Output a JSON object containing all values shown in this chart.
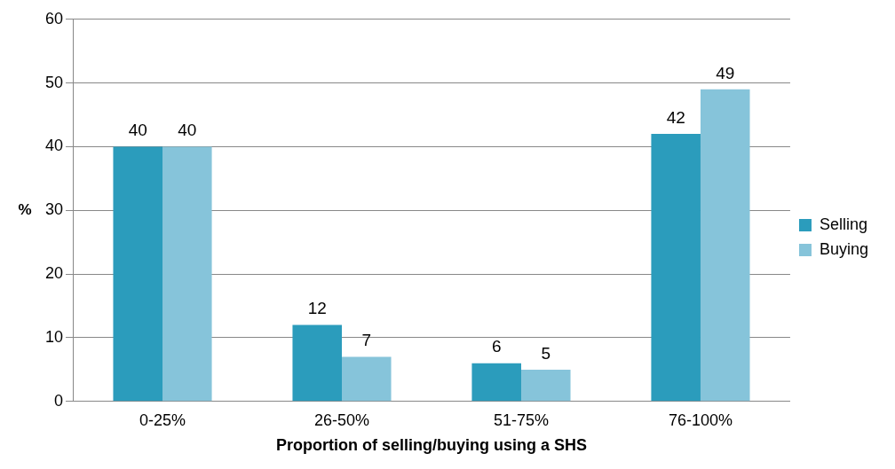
{
  "chart_data": {
    "type": "bar",
    "xlabel": "Proportion of selling/buying using a SHS",
    "ylabel": "%",
    "categories": [
      "0-25%",
      "26-50%",
      "51-75%",
      "76-100%"
    ],
    "series": [
      {
        "name": "Selling",
        "color": "#2b9cbc",
        "values": [
          40,
          12,
          6,
          42
        ]
      },
      {
        "name": "Buying",
        "color": "#86c4da",
        "values": [
          40,
          7,
          5,
          49
        ]
      }
    ],
    "ylim": [
      0,
      60
    ],
    "yticks": [
      0,
      10,
      20,
      30,
      40,
      50,
      60
    ],
    "grid": "y",
    "legend": "right",
    "data_labels": true
  }
}
